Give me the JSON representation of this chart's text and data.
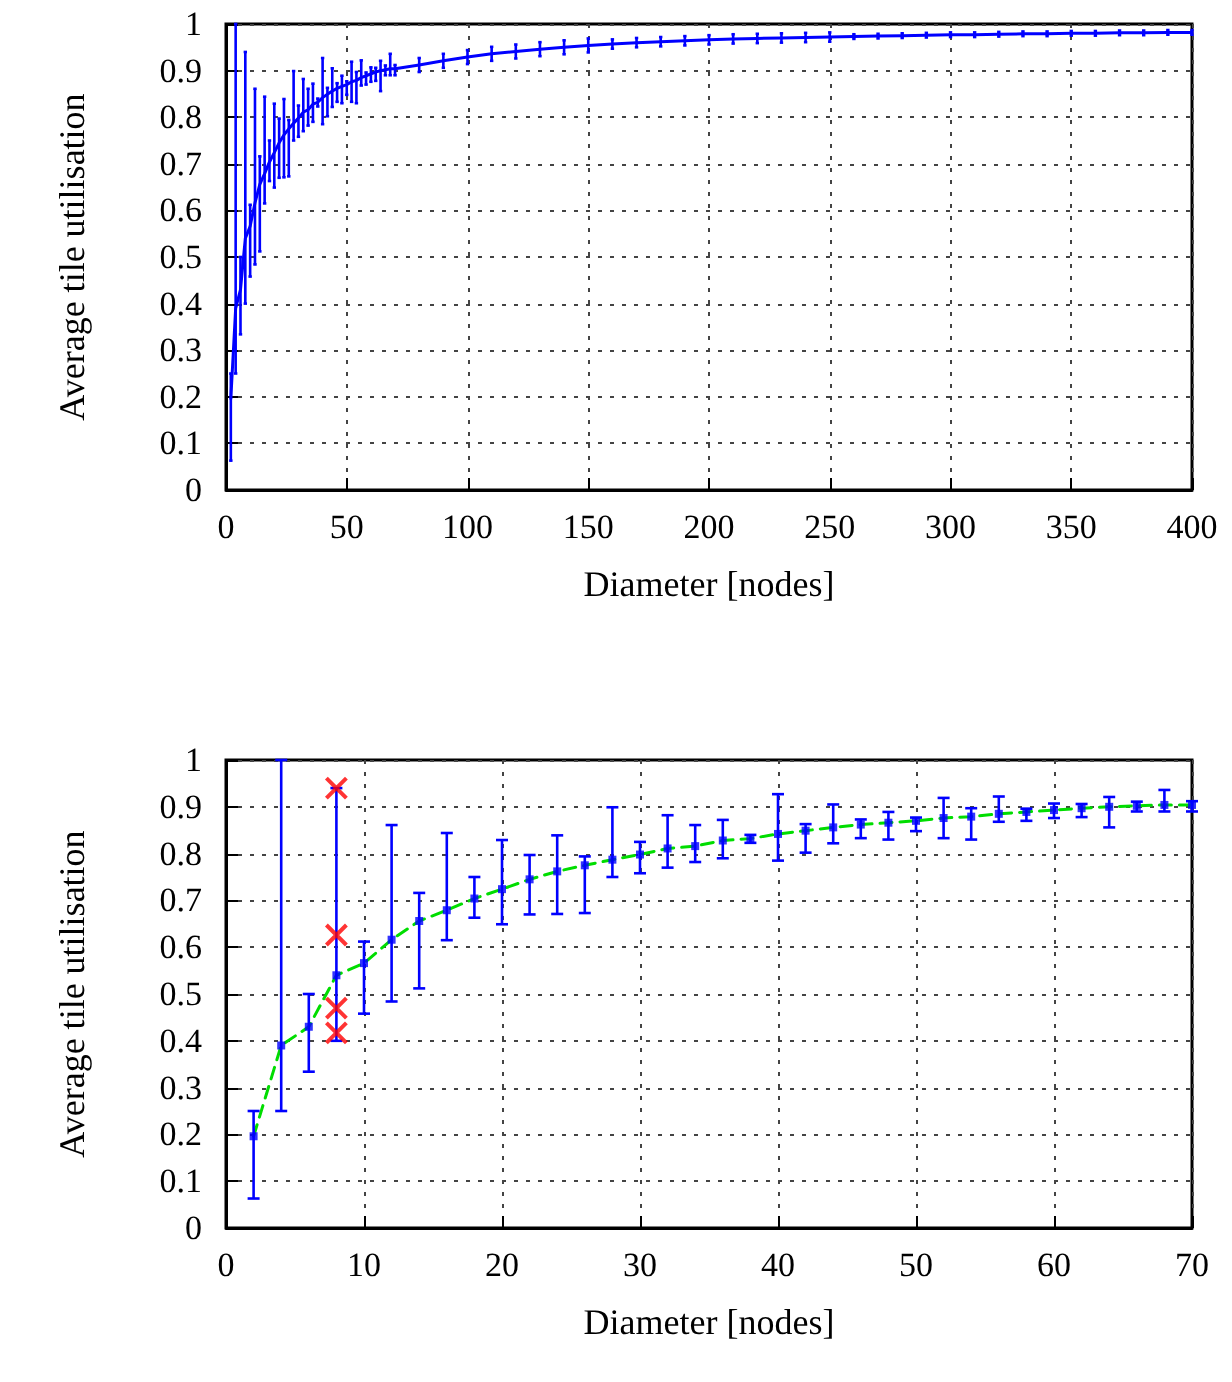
{
  "chart_data": [
    {
      "type": "line",
      "xlabel": "Diameter [nodes]",
      "ylabel": "Average tile utilisation",
      "xlim": [
        0,
        400
      ],
      "xticks": [
        0,
        50,
        100,
        150,
        200,
        250,
        300,
        350,
        400
      ],
      "ylim": [
        0,
        1
      ],
      "yticks": [
        0,
        0.1,
        0.2,
        0.3,
        0.4,
        0.5,
        0.6,
        0.7,
        0.8,
        0.9,
        1
      ],
      "grid": true,
      "series": [
        {
          "color": "#0000ff",
          "marker": "none",
          "x": [
            2,
            4,
            6,
            8,
            10,
            12,
            14,
            16,
            18,
            20,
            22,
            24,
            26,
            28,
            30,
            32,
            34,
            36,
            38,
            40,
            42,
            44,
            46,
            48,
            50,
            52,
            54,
            56,
            58,
            60,
            62,
            64,
            66,
            68,
            70,
            80,
            90,
            100,
            110,
            120,
            130,
            140,
            150,
            160,
            170,
            180,
            190,
            200,
            210,
            220,
            230,
            240,
            250,
            260,
            270,
            280,
            290,
            300,
            310,
            320,
            330,
            340,
            350,
            360,
            370,
            380,
            390,
            400
          ],
          "values": [
            0.196,
            0.39,
            0.43,
            0.54,
            0.566,
            0.616,
            0.656,
            0.679,
            0.704,
            0.724,
            0.745,
            0.762,
            0.775,
            0.787,
            0.798,
            0.811,
            0.816,
            0.828,
            0.832,
            0.842,
            0.849,
            0.856,
            0.862,
            0.866,
            0.87,
            0.876,
            0.879,
            0.885,
            0.889,
            0.893,
            0.897,
            0.9,
            0.902,
            0.904,
            0.904,
            0.912,
            0.921,
            0.929,
            0.936,
            0.941,
            0.946,
            0.95,
            0.954,
            0.957,
            0.96,
            0.962,
            0.964,
            0.966,
            0.968,
            0.969,
            0.97,
            0.971,
            0.972,
            0.973,
            0.974,
            0.975,
            0.976,
            0.977,
            0.977,
            0.978,
            0.979,
            0.979,
            0.98,
            0.98,
            0.981,
            0.981,
            0.982,
            0.982
          ],
          "errors": [
            [
              0.063,
              0.25
            ],
            [
              0.25,
              1.0
            ],
            [
              0.334,
              0.5
            ],
            [
              0.4,
              0.94
            ],
            [
              0.458,
              0.612
            ],
            [
              0.484,
              0.861
            ],
            [
              0.512,
              0.716
            ],
            [
              0.615,
              0.844
            ],
            [
              0.663,
              0.75
            ],
            [
              0.649,
              0.829
            ],
            [
              0.67,
              0.797
            ],
            [
              0.671,
              0.839
            ],
            [
              0.673,
              0.794
            ],
            [
              0.75,
              0.899
            ],
            [
              0.758,
              0.825
            ],
            [
              0.77,
              0.882
            ],
            [
              0.782,
              0.861
            ],
            [
              0.79,
              0.872
            ],
            [
              0.823,
              0.84
            ],
            [
              0.785,
              0.927
            ],
            [
              0.802,
              0.863
            ],
            [
              0.822,
              0.905
            ],
            [
              0.833,
              0.873
            ],
            [
              0.83,
              0.889
            ],
            [
              0.848,
              0.877
            ],
            [
              0.833,
              0.919
            ],
            [
              0.83,
              0.897
            ],
            [
              0.868,
              0.922
            ],
            [
              0.87,
              0.896
            ],
            [
              0.876,
              0.907
            ],
            [
              0.878,
              0.906
            ],
            [
              0.856,
              0.921
            ],
            [
              0.89,
              0.911
            ],
            [
              0.89,
              0.936
            ],
            [
              0.89,
              0.912
            ],
            0.015,
            0.015,
            0.015,
            0.015,
            0.015,
            0.015,
            0.015,
            0.015,
            0.01,
            0.01,
            0.01,
            0.01,
            0.01,
            0.01,
            0.01,
            0.01,
            0.01,
            0.01,
            0.005,
            0.005,
            0.005,
            0.005,
            0.005,
            0.005,
            0.005,
            0.005,
            0.005,
            0.005,
            0.005,
            0.005,
            0.005,
            0.005,
            0.005
          ]
        }
      ]
    },
    {
      "type": "line",
      "xlabel": "Diameter [nodes]",
      "ylabel": "Average tile utilisation",
      "xlim": [
        0,
        70
      ],
      "xticks": [
        0,
        10,
        20,
        30,
        40,
        50,
        60,
        70
      ],
      "ylim": [
        0,
        1
      ],
      "yticks": [
        0,
        0.1,
        0.2,
        0.3,
        0.4,
        0.5,
        0.6,
        0.7,
        0.8,
        0.9,
        1
      ],
      "grid": true,
      "series": [
        {
          "type": "scatter",
          "color": "#0000ff",
          "marker": "square",
          "x": [
            2,
            4,
            6,
            8,
            10,
            12,
            14,
            16,
            18,
            20,
            22,
            24,
            26,
            28,
            30,
            32,
            34,
            36,
            38,
            40,
            42,
            44,
            46,
            48,
            50,
            52,
            54,
            56,
            58,
            60,
            62,
            64,
            66,
            68,
            70
          ],
          "values": [
            0.196,
            0.39,
            0.43,
            0.54,
            0.566,
            0.616,
            0.656,
            0.679,
            0.704,
            0.724,
            0.745,
            0.762,
            0.775,
            0.787,
            0.798,
            0.811,
            0.816,
            0.828,
            0.832,
            0.842,
            0.849,
            0.856,
            0.862,
            0.866,
            0.87,
            0.876,
            0.879,
            0.885,
            0.889,
            0.893,
            0.897,
            0.9,
            0.902,
            0.904,
            0.904
          ],
          "errors": [
            [
              0.063,
              0.25
            ],
            [
              0.25,
              1.0
            ],
            [
              0.334,
              0.5
            ],
            [
              0.4,
              0.94
            ],
            [
              0.458,
              0.612
            ],
            [
              0.484,
              0.861
            ],
            [
              0.512,
              0.716
            ],
            [
              0.615,
              0.844
            ],
            [
              0.663,
              0.75
            ],
            [
              0.649,
              0.829
            ],
            [
              0.67,
              0.797
            ],
            [
              0.671,
              0.839
            ],
            [
              0.673,
              0.794
            ],
            [
              0.75,
              0.899
            ],
            [
              0.758,
              0.825
            ],
            [
              0.77,
              0.882
            ],
            [
              0.782,
              0.861
            ],
            [
              0.79,
              0.872
            ],
            [
              0.823,
              0.84
            ],
            [
              0.785,
              0.927
            ],
            [
              0.802,
              0.863
            ],
            [
              0.822,
              0.905
            ],
            [
              0.833,
              0.873
            ],
            [
              0.83,
              0.889
            ],
            [
              0.848,
              0.877
            ],
            [
              0.833,
              0.919
            ],
            [
              0.83,
              0.897
            ],
            [
              0.868,
              0.922
            ],
            [
              0.87,
              0.896
            ],
            [
              0.876,
              0.907
            ],
            [
              0.878,
              0.906
            ],
            [
              0.856,
              0.921
            ],
            [
              0.89,
              0.911
            ],
            [
              0.89,
              0.936
            ],
            [
              0.89,
              0.912
            ]
          ]
        },
        {
          "type": "line",
          "color": "#00dd00",
          "marker": "none",
          "line_style": "dashed",
          "x": [
            2,
            4,
            6,
            8,
            10,
            12,
            14,
            16,
            18,
            20,
            22,
            24,
            26,
            28,
            30,
            32,
            34,
            36,
            38,
            40,
            42,
            44,
            46,
            48,
            50,
            52,
            54,
            56,
            58,
            60,
            62,
            64,
            66,
            68,
            70
          ],
          "values": [
            0.196,
            0.39,
            0.43,
            0.54,
            0.566,
            0.616,
            0.656,
            0.679,
            0.704,
            0.724,
            0.745,
            0.762,
            0.775,
            0.787,
            0.798,
            0.811,
            0.816,
            0.828,
            0.832,
            0.842,
            0.849,
            0.856,
            0.862,
            0.866,
            0.87,
            0.876,
            0.879,
            0.885,
            0.889,
            0.893,
            0.897,
            0.9,
            0.902,
            0.904,
            0.904
          ]
        },
        {
          "type": "scatter",
          "color": "#ff0000",
          "marker": "cross",
          "x": [
            8,
            8,
            8,
            8
          ],
          "values": [
            0.94,
            0.626,
            0.47,
            0.417
          ]
        }
      ]
    }
  ]
}
